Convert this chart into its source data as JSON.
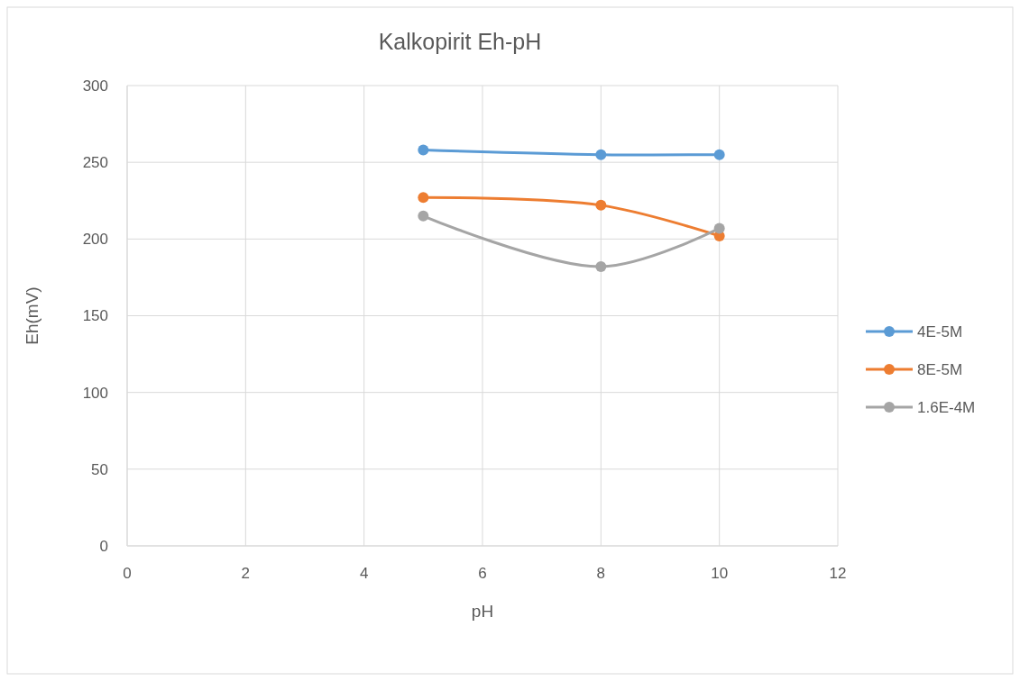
{
  "chart_data": {
    "type": "line",
    "title": "Kalkopirit Eh-pH",
    "xlabel": "pH",
    "ylabel": "Eh(mV)",
    "xlim": [
      0,
      12
    ],
    "xticks": [
      0,
      2,
      4,
      6,
      8,
      10,
      12
    ],
    "ylim": [
      0,
      300
    ],
    "yticks": [
      0,
      50,
      100,
      150,
      200,
      250,
      300
    ],
    "grid": true,
    "legend": "right",
    "marker": "circle",
    "line_style": "solid",
    "series": [
      {
        "name": "4E-5M",
        "color": "#5b9bd5",
        "x": [
          5,
          8,
          10
        ],
        "values": [
          258,
          255,
          255
        ]
      },
      {
        "name": "8E-5M",
        "color": "#ed7d31",
        "x": [
          5,
          8,
          10
        ],
        "values": [
          227,
          222,
          202
        ]
      },
      {
        "name": "1.6E-4M",
        "color": "#a5a5a5",
        "x": [
          5,
          8,
          10
        ],
        "values": [
          215,
          182,
          207
        ]
      }
    ]
  }
}
